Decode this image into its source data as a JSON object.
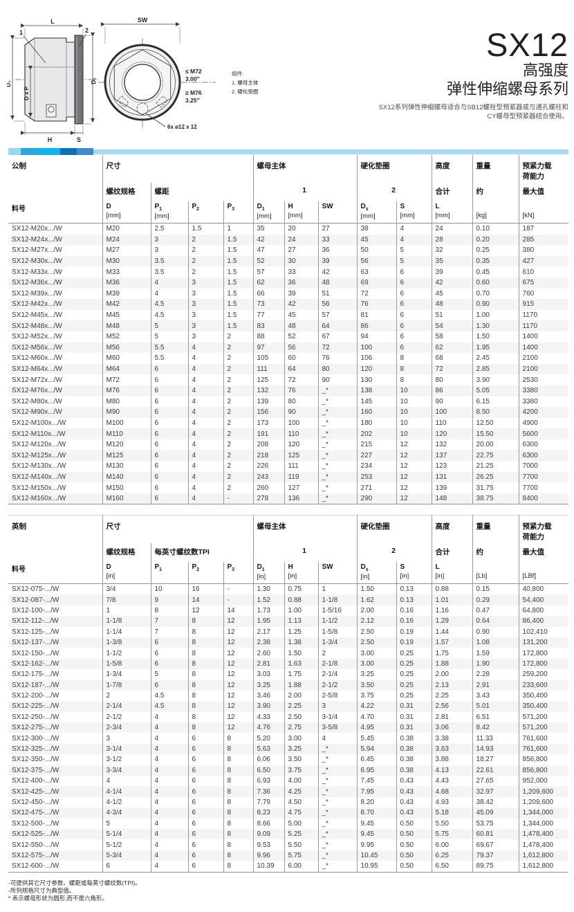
{
  "title": {
    "model": "SX12",
    "line2": "高强度",
    "line3": "弹性伸缩螺母系列",
    "desc1": "SX12系列弹性伸缩螺母适合与SB12螺栓型预紧器或与通孔螺柱和",
    "desc2": "CY螺母型预紧器结合使用。"
  },
  "diagram": {
    "side": {
      "l": "L",
      "one": "1",
      "two": "2",
      "d1": "D₁",
      "dxp": "D x P",
      "ds": "Dₛ",
      "h": "H",
      "s": "S"
    },
    "front": {
      "sw": "SW",
      "m72": "≤ M72",
      "m72in": "3.00″",
      "m76": "≥ M76",
      "m76in": "3.25″",
      "holes": "6x ø12 x 12"
    },
    "legend": {
      "title": "组件:",
      "i1": "1. 螺母主体",
      "i2": "2. 硬化垫圈"
    }
  },
  "colors": {
    "bar_segments": [
      "#9bd4f1",
      "#2ba7e0",
      "#0fb4ec",
      "#0e6fb7",
      "#4189c8"
    ],
    "bar_rest": "#a6d9f4"
  },
  "metric": {
    "section_label": "公制",
    "part_label": "料号",
    "groups": {
      "size": "尺寸",
      "nut_body": "螺母主体",
      "washer": "硬化垫圈",
      "height": "高度",
      "weight": "重量",
      "preload": "预紧力载荷能力"
    },
    "subs": {
      "thread": "螺纹规格",
      "pitch": "螺距",
      "one": "1",
      "two": "2",
      "total": "合计",
      "approx": "约",
      "max": "最大值"
    },
    "columns": [
      {
        "b": "D",
        "s": "",
        "u": "[mm]"
      },
      {
        "b": "P",
        "s": "1",
        "u": "[mm]"
      },
      {
        "b": "P",
        "s": "2",
        "u": ""
      },
      {
        "b": "P",
        "s": "3",
        "u": ""
      },
      {
        "b": "D",
        "s": "1",
        "u": "[mm]"
      },
      {
        "b": "H",
        "s": "",
        "u": "[mm]"
      },
      {
        "b": "SW",
        "s": "",
        "u": ""
      },
      {
        "b": "D",
        "s": "s",
        "u": "[mm]"
      },
      {
        "b": "S",
        "s": "",
        "u": "[mm]"
      },
      {
        "b": "L",
        "s": "",
        "u": "[mm]"
      },
      {
        "b": "",
        "s": "",
        "u": "[kg]"
      },
      {
        "b": "",
        "s": "",
        "u": "[kN]"
      }
    ],
    "rows": [
      [
        "SX12-M20x.../W",
        "M20",
        "2.5",
        "1.5",
        "1",
        "35",
        "20",
        "27",
        "38",
        "4",
        "24",
        "0.10",
        "187"
      ],
      [
        "SX12-M24x.../W",
        "M24",
        "3",
        "2",
        "1.5",
        "42",
        "24",
        "33",
        "45",
        "4",
        "28",
        "0.20",
        "285"
      ],
      [
        "SX12-M27x.../W",
        "M27",
        "3",
        "2",
        "1.5",
        "47",
        "27",
        "36",
        "50",
        "5",
        "32",
        "0.25",
        "380"
      ],
      [
        "SX12-M30x.../W",
        "M30",
        "3.5",
        "2",
        "1.5",
        "52",
        "30",
        "39",
        "56",
        "5",
        "35",
        "0.35",
        "427"
      ],
      [
        "SX12-M33x.../W",
        "M33",
        "3.5",
        "2",
        "1.5",
        "57",
        "33",
        "42",
        "63",
        "6",
        "39",
        "0.45",
        "610"
      ],
      [
        "SX12-M36x.../W",
        "M36",
        "4",
        "3",
        "1.5",
        "62",
        "36",
        "48",
        "69",
        "6",
        "42",
        "0.60",
        "675"
      ],
      [
        "SX12-M39x.../W",
        "M39",
        "4",
        "3",
        "1.5",
        "66",
        "39",
        "51",
        "72",
        "6",
        "45",
        "0.70",
        "760"
      ],
      [
        "SX12-M42x.../W",
        "M42",
        "4.5",
        "3",
        "1.5",
        "73",
        "42",
        "56",
        "76",
        "6",
        "48",
        "0.90",
        "915"
      ],
      [
        "SX12-M45x.../W",
        "M45",
        "4.5",
        "3",
        "1.5",
        "77",
        "45",
        "57",
        "81",
        "6",
        "51",
        "1.00",
        "1170"
      ],
      [
        "SX12-M48x.../W",
        "M48",
        "5",
        "3",
        "1.5",
        "83",
        "48",
        "64",
        "86",
        "6",
        "54",
        "1.30",
        "1170"
      ],
      [
        "SX12-M52x.../W",
        "M52",
        "5",
        "3",
        "2",
        "88",
        "52",
        "67",
        "94",
        "6",
        "58",
        "1.50",
        "1400"
      ],
      [
        "SX12-M56x.../W",
        "M56",
        "5.5",
        "4",
        "2",
        "97",
        "56",
        "72",
        "100",
        "6",
        "62",
        "1.95",
        "1400"
      ],
      [
        "SX12-M60x.../W",
        "M60",
        "5.5",
        "4",
        "2",
        "105",
        "60",
        "76",
        "106",
        "8",
        "68",
        "2.45",
        "2100"
      ],
      [
        "SX12-M64x.../W",
        "M64",
        "6",
        "4",
        "2",
        "111",
        "64",
        "80",
        "120",
        "8",
        "72",
        "2.85",
        "2100"
      ],
      [
        "SX12-M72x.../W",
        "M72",
        "6",
        "4",
        "2",
        "125",
        "72",
        "90",
        "130",
        "8",
        "80",
        "3.90",
        "2530"
      ],
      [
        "SX12-M76x.../W",
        "M76",
        "6",
        "4",
        "2",
        "132",
        "76",
        "_*",
        "138",
        "10",
        "86",
        "5.05",
        "3380"
      ],
      [
        "SX12-M80x.../W",
        "M80",
        "6",
        "4",
        "2",
        "139",
        "80",
        "_*",
        "145",
        "10",
        "90",
        "6.15",
        "3380"
      ],
      [
        "SX12-M90x.../W",
        "M90",
        "6",
        "4",
        "2",
        "156",
        "90",
        "_*",
        "160",
        "10",
        "100",
        "8.50",
        "4200"
      ],
      [
        "SX12-M100x.../W",
        "M100",
        "6",
        "4",
        "2",
        "173",
        "100",
        "_*",
        "180",
        "10",
        "110",
        "12.50",
        "4900"
      ],
      [
        "SX12-M110x.../W",
        "M110",
        "6",
        "4",
        "2",
        "191",
        "110",
        "_*",
        "202",
        "10",
        "120",
        "15.50",
        "5600"
      ],
      [
        "SX12-M120x.../W",
        "M120",
        "6",
        "4",
        "2",
        "208",
        "120",
        "_*",
        "215",
        "12",
        "132",
        "20.00",
        "6300"
      ],
      [
        "SX12-M125x.../W",
        "M125",
        "6",
        "4",
        "2",
        "218",
        "125",
        "_*",
        "227",
        "12",
        "137",
        "22.75",
        "6300"
      ],
      [
        "SX12-M130x.../W",
        "M130",
        "6",
        "4",
        "2",
        "226",
        "111",
        "_*",
        "234",
        "12",
        "123",
        "21.25",
        "7000"
      ],
      [
        "SX12-M140x.../W",
        "M140",
        "6",
        "4",
        "2",
        "243",
        "119",
        "_*",
        "253",
        "12",
        "131",
        "26.25",
        "7700"
      ],
      [
        "SX12-M150x.../W",
        "M150",
        "6",
        "4",
        "2",
        "260",
        "127",
        "_*",
        "271",
        "12",
        "139",
        "31.75",
        "7700"
      ],
      [
        "SX12-M160x.../W",
        "M160",
        "6",
        "4",
        "-",
        "278",
        "136",
        "_*",
        "290",
        "12",
        "148",
        "38.75",
        "8400"
      ]
    ]
  },
  "imperial": {
    "section_label": "英制",
    "part_label": "料号",
    "groups": {
      "size": "尺寸",
      "nut_body": "螺母主体",
      "washer": "硬化垫圈",
      "height": "高度",
      "weight": "重量",
      "preload": "预紧力载荷能力"
    },
    "subs": {
      "thread": "螺纹规格",
      "pitch": "每英寸螺纹数TPI",
      "one": "1",
      "two": "2",
      "total": "合计",
      "approx": "约",
      "max": "最大值"
    },
    "columns": [
      {
        "b": "D",
        "s": "",
        "u": "[in]"
      },
      {
        "b": "P",
        "s": "1",
        "u": ""
      },
      {
        "b": "P",
        "s": "2",
        "u": ""
      },
      {
        "b": "P",
        "s": "3",
        "u": ""
      },
      {
        "b": "D",
        "s": "1",
        "u": "[in]"
      },
      {
        "b": "H",
        "s": "",
        "u": "[in]"
      },
      {
        "b": "SW",
        "s": "",
        "u": ""
      },
      {
        "b": "D",
        "s": "s",
        "u": "[in]"
      },
      {
        "b": "S",
        "s": "",
        "u": "[in]"
      },
      {
        "b": "L",
        "s": "",
        "u": "[in]"
      },
      {
        "b": "",
        "s": "",
        "u": "[Lb]"
      },
      {
        "b": "",
        "s": "",
        "u": "[LBf]"
      }
    ],
    "rows": [
      [
        "SX12-075-.../W",
        "3/4",
        "10",
        "16",
        "-",
        "1.30",
        "0.75",
        "1",
        "1.50",
        "0.13",
        "0.88",
        "0.15",
        "40,800"
      ],
      [
        "SX12-087-.../W",
        "7/8",
        "9",
        "14",
        "-",
        "1.52",
        "0.88",
        "1-1/8",
        "1.62",
        "0.13",
        "1.01",
        "0.29",
        "54,400"
      ],
      [
        "SX12-100-.../W",
        "1",
        "8",
        "12",
        "14",
        "1.73",
        "1.00",
        "1-5/16",
        "2.00",
        "0.16",
        "1.16",
        "0.47",
        "64,800"
      ],
      [
        "SX12-112-.../W",
        "1-1/8",
        "7",
        "8",
        "12",
        "1.95",
        "1.13",
        "1-1/2",
        "2.12",
        "0.16",
        "1.29",
        "0.64",
        "86,400"
      ],
      [
        "SX12-125-.../W",
        "1-1/4",
        "7",
        "8",
        "12",
        "2.17",
        "1.25",
        "1-5/8",
        "2.50",
        "0.19",
        "1.44",
        "0.90",
        "102,410"
      ],
      [
        "SX12-137-.../W",
        "1-3/8",
        "6",
        "8",
        "12",
        "2.38",
        "1.38",
        "1-3/4",
        "2.50",
        "0.19",
        "1.57",
        "1.08",
        "131,200"
      ],
      [
        "SX12-150-.../W",
        "1-1/2",
        "6",
        "8",
        "12",
        "2.60",
        "1.50",
        "2",
        "3.00",
        "0.25",
        "1.75",
        "1.59",
        "172,800"
      ],
      [
        "SX12-162-.../W",
        "1-5/8",
        "6",
        "8",
        "12",
        "2.81",
        "1.63",
        "2-1/8",
        "3.00",
        "0.25",
        "1.88",
        "1.90",
        "172,800"
      ],
      [
        "SX12-175-.../W",
        "1-3/4",
        "5",
        "8",
        "12",
        "3.03",
        "1.75",
        "2-1/4",
        "3.25",
        "0.25",
        "2.00",
        "2.28",
        "259,200"
      ],
      [
        "SX12-187-.../W",
        "1-7/8",
        "6",
        "8",
        "12",
        "3.25",
        "1.88",
        "2-1/2",
        "3.50",
        "0.25",
        "2.13",
        "2.91",
        "233,600"
      ],
      [
        "SX12-200-.../W",
        "2",
        "4.5",
        "8",
        "12",
        "3.46",
        "2.00",
        "2-5/8",
        "3.75",
        "0.25",
        "2.25",
        "3.43",
        "350,400"
      ],
      [
        "SX12-225-.../W",
        "2-1/4",
        "4.5",
        "8",
        "12",
        "3.90",
        "2.25",
        "3",
        "4.22",
        "0.31",
        "2.56",
        "5.01",
        "350,400"
      ],
      [
        "SX12-250-.../W",
        "2-1/2",
        "4",
        "8",
        "12",
        "4.33",
        "2.50",
        "3-1/4",
        "4.70",
        "0.31",
        "2.81",
        "6.51",
        "571,200"
      ],
      [
        "SX12-275-.../W",
        "2-3/4",
        "4",
        "8",
        "12",
        "4.76",
        "2.75",
        "3-5/8",
        "4.95",
        "0.31",
        "3.06",
        "8.42",
        "571,200"
      ],
      [
        "SX12-300-.../W",
        "3",
        "4",
        "6",
        "8",
        "5.20",
        "3.00",
        "4",
        "5.45",
        "0.38",
        "3.38",
        "11.33",
        "761,600"
      ],
      [
        "SX12-325-.../W",
        "3-1/4",
        "4",
        "6",
        "8",
        "5.63",
        "3.25",
        "_*",
        "5.94",
        "0.38",
        "3.63",
        "14.93",
        "761,600"
      ],
      [
        "SX12-350-.../W",
        "3-1/2",
        "4",
        "6",
        "8",
        "6.06",
        "3.50",
        "_*",
        "6.45",
        "0.38",
        "3.88",
        "18.27",
        "856,800"
      ],
      [
        "SX12-375-.../W",
        "3-3/4",
        "4",
        "6",
        "8",
        "6.50",
        "3.75",
        "_*",
        "6.95",
        "0.38",
        "4.13",
        "22.61",
        "856,800"
      ],
      [
        "SX12-400-.../W",
        "4",
        "4",
        "6",
        "8",
        "6.93",
        "4.00",
        "_*",
        "7.45",
        "0.43",
        "4.43",
        "27.65",
        "952,000"
      ],
      [
        "SX12-425-.../W",
        "4-1/4",
        "4",
        "6",
        "8",
        "7.36",
        "4.25",
        "_*",
        "7.95",
        "0.43",
        "4.68",
        "32.97",
        "1,209,600"
      ],
      [
        "SX12-450-.../W",
        "4-1/2",
        "4",
        "6",
        "8",
        "7.79",
        "4.50",
        "_*",
        "8.20",
        "0.43",
        "4.93",
        "38.42",
        "1,209,600"
      ],
      [
        "SX12-475-.../W",
        "4-3/4",
        "4",
        "6",
        "8",
        "8.23",
        "4.75",
        "_*",
        "8.70",
        "0.43",
        "5.18",
        "45.09",
        "1,344,000"
      ],
      [
        "SX12-500-.../W",
        "5",
        "4",
        "6",
        "8",
        "8.66",
        "5.00",
        "_*",
        "9.45",
        "0.50",
        "5.50",
        "53.75",
        "1,344,000"
      ],
      [
        "SX12-525-.../W",
        "5-1/4",
        "4",
        "6",
        "8",
        "9.09",
        "5.25",
        "_*",
        "9.45",
        "0.50",
        "5.75",
        "60.81",
        "1,478,400"
      ],
      [
        "SX12-550-.../W",
        "5-1/2",
        "4",
        "6",
        "8",
        "9.53",
        "5.50",
        "_*",
        "9.95",
        "0.50",
        "6.00",
        "69.67",
        "1,478,400"
      ],
      [
        "SX12-575-.../W",
        "5-3/4",
        "4",
        "6",
        "8",
        "9.96",
        "5.75",
        "_*",
        "10.45",
        "0.50",
        "6.25",
        "79.37",
        "1,612,800"
      ],
      [
        "SX12-600-.../W",
        "6",
        "4",
        "6",
        "8",
        "10.39",
        "6.00",
        "_*",
        "10.95",
        "0.50",
        "6.50",
        "89.75",
        "1,612,800"
      ]
    ]
  },
  "footnotes": [
    "-可提供其它尺寸参数、螺距或每英寸螺纹数(TPI)。",
    "-所列规格尺寸为典型值。",
    "* 表示螺母形状为圆形,而不是六角形。"
  ]
}
